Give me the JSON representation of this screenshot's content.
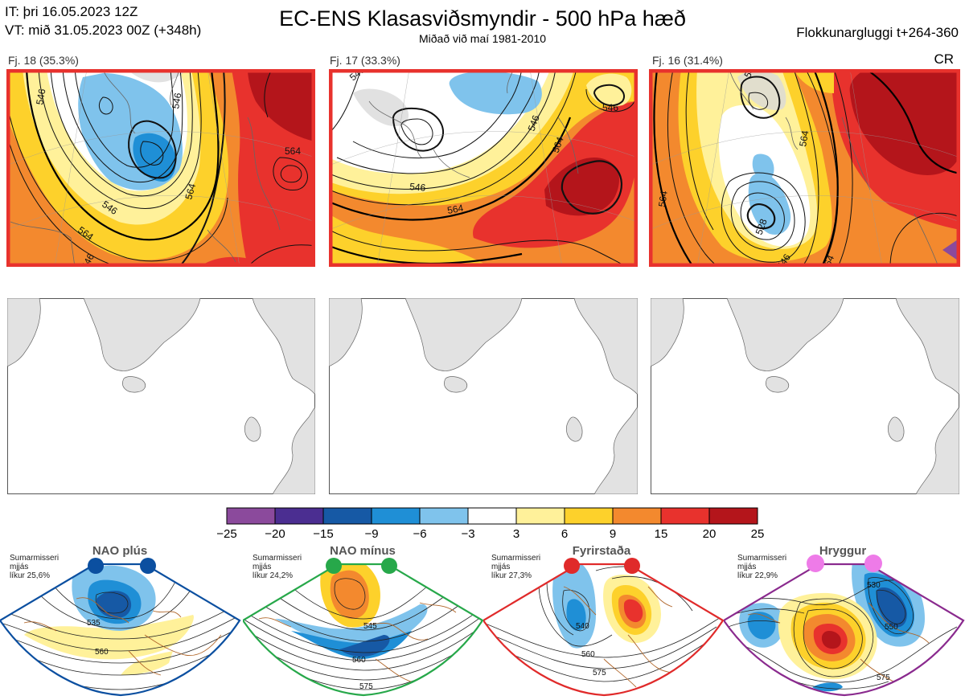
{
  "header": {
    "it": "IT: þri 16.05.2023 12Z",
    "vt": "VT: mið 31.05.2023 00Z  (+348h)",
    "title": "EC-ENS Klasasviðsmyndir - 500 hPa hæð",
    "subtitle": "Miðað við maí 1981-2010",
    "window": "Flokkunargluggi t+264-360",
    "code": "CR"
  },
  "panels": [
    {
      "label": "Fj. 18 (35.3%)",
      "contours": [
        "546",
        "546",
        "564",
        "546",
        "564"
      ],
      "extra": "564"
    },
    {
      "label": "Fj. 17 (33.3%)",
      "contours": [
        "546",
        "546",
        "564",
        "546",
        "564"
      ],
      "extra": "546"
    },
    {
      "label": "Fj. 16 (31.4%)",
      "contours": [
        "564",
        "546",
        "564",
        "528",
        "546"
      ],
      "extra": "564"
    }
  ],
  "colorbar": {
    "ticks": [
      "−25",
      "−20",
      "−15",
      "−9",
      "−6",
      "−3",
      "3",
      "6",
      "9",
      "15",
      "20",
      "25"
    ],
    "colors": [
      "#8b4a9c",
      "#4b2e91",
      "#1659a5",
      "#1f8fd6",
      "#7fc3ec",
      "#ffffff",
      "#fff19a",
      "#fdd12b",
      "#f3892e",
      "#e8322d",
      "#b4151b"
    ]
  },
  "regimes": [
    {
      "name": "NAO plús",
      "season": "Sumarmisseri",
      "mean": "mjjás",
      "likelihood": "líkur 25,6%",
      "color": "#0b4fa0",
      "dot": "#0b4fa0",
      "contours": [
        "535",
        "560"
      ]
    },
    {
      "name": "NAO mínus",
      "season": "Sumarmisseri",
      "mean": "mjjás",
      "likelihood": "líkur 24,2%",
      "color": "#27a84a",
      "dot": "#27a84a",
      "contours": [
        "545",
        "560",
        "575"
      ]
    },
    {
      "name": "Fyrirstaða",
      "season": "Sumarmisseri",
      "mean": "mjjás",
      "likelihood": "líkur 27,3%",
      "color": "#e02a2a",
      "dot": "#e02a2a",
      "contours": [
        "540",
        "560",
        "575"
      ]
    },
    {
      "name": "Hryggur",
      "season": "Sumarmisseri",
      "mean": "mjjás",
      "likelihood": "líkur 22,9%",
      "color": "#8a2a8e",
      "dot": "#ee7be8",
      "contours": [
        "530",
        "550",
        "575"
      ]
    }
  ]
}
